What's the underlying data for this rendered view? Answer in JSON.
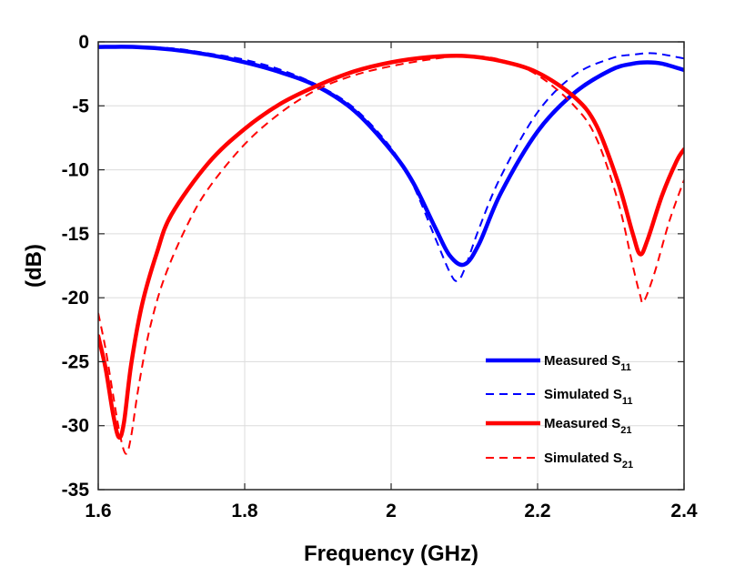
{
  "chart_data": {
    "type": "line",
    "title": "",
    "xlabel": "Frequency (GHz)",
    "ylabel": "(dB)",
    "xlim": [
      1.6,
      2.4
    ],
    "ylim": [
      -35,
      0
    ],
    "xticks": [
      1.6,
      1.8,
      2.0,
      2.2,
      2.4
    ],
    "xtick_labels": [
      "1.6",
      "1.8",
      "2",
      "2.2",
      "2.4"
    ],
    "yticks": [
      0,
      -5,
      -10,
      -15,
      -20,
      -25,
      -30,
      -35
    ],
    "ytick_labels": [
      "0",
      "-5",
      "-10",
      "-15",
      "-20",
      "-25",
      "-30",
      "-35"
    ],
    "grid": true,
    "legend_position": "bottom-right",
    "series": [
      {
        "name": "Measured S11",
        "label_main": "Measured S",
        "label_sub": "11",
        "color": "#0000ff",
        "style": "solid",
        "x": [
          1.6,
          1.65,
          1.7,
          1.75,
          1.8,
          1.85,
          1.9,
          1.95,
          2.0,
          2.03,
          2.06,
          2.08,
          2.1,
          2.12,
          2.15,
          2.2,
          2.25,
          2.3,
          2.33,
          2.35,
          2.37,
          2.4
        ],
        "y": [
          -0.4,
          -0.4,
          -0.6,
          -1.0,
          -1.6,
          -2.4,
          -3.5,
          -5.4,
          -8.5,
          -11.0,
          -14.5,
          -16.7,
          -17.4,
          -15.8,
          -11.8,
          -7.0,
          -4.0,
          -2.2,
          -1.7,
          -1.6,
          -1.7,
          -2.2
        ]
      },
      {
        "name": "Simulated S11",
        "label_main": "Simulated S",
        "label_sub": "11",
        "color": "#0000ff",
        "style": "dashed",
        "x": [
          1.6,
          1.65,
          1.7,
          1.75,
          1.8,
          1.85,
          1.9,
          1.95,
          2.0,
          2.03,
          2.06,
          2.08,
          2.09,
          2.1,
          2.12,
          2.15,
          2.2,
          2.25,
          2.3,
          2.33,
          2.36,
          2.4
        ],
        "y": [
          -0.4,
          -0.4,
          -0.5,
          -0.9,
          -1.4,
          -2.2,
          -3.4,
          -5.2,
          -8.3,
          -11.2,
          -15.3,
          -18.0,
          -18.7,
          -17.8,
          -14.6,
          -10.5,
          -5.5,
          -2.6,
          -1.3,
          -1.0,
          -0.9,
          -1.3
        ]
      },
      {
        "name": "Measured S21",
        "label_main": "Measured S",
        "label_sub": "21",
        "color": "#ff0000",
        "style": "solid",
        "x": [
          1.6,
          1.61,
          1.62,
          1.628,
          1.635,
          1.645,
          1.66,
          1.68,
          1.7,
          1.75,
          1.8,
          1.85,
          1.9,
          1.95,
          2.0,
          2.05,
          2.1,
          2.15,
          2.2,
          2.25,
          2.28,
          2.31,
          2.33,
          2.34,
          2.35,
          2.37,
          2.39,
          2.4
        ],
        "y": [
          -23.0,
          -25.5,
          -29.0,
          -30.9,
          -29.8,
          -25.2,
          -20.5,
          -16.5,
          -13.5,
          -9.5,
          -6.8,
          -4.8,
          -3.4,
          -2.3,
          -1.6,
          -1.2,
          -1.1,
          -1.5,
          -2.4,
          -4.3,
          -6.5,
          -11.0,
          -15.0,
          -16.6,
          -15.5,
          -12.0,
          -9.3,
          -8.4
        ]
      },
      {
        "name": "Simulated S21",
        "label_main": "Simulated S",
        "label_sub": "21",
        "color": "#ff0000",
        "style": "dashed",
        "x": [
          1.6,
          1.61,
          1.62,
          1.63,
          1.638,
          1.645,
          1.655,
          1.67,
          1.69,
          1.72,
          1.75,
          1.8,
          1.85,
          1.9,
          1.95,
          2.0,
          2.05,
          2.1,
          2.15,
          2.2,
          2.25,
          2.28,
          2.31,
          2.33,
          2.34,
          2.345,
          2.36,
          2.38,
          2.4
        ],
        "y": [
          -21.2,
          -24.0,
          -27.5,
          -30.8,
          -32.2,
          -30.8,
          -27.0,
          -22.5,
          -18.5,
          -14.5,
          -11.5,
          -8.0,
          -5.5,
          -3.7,
          -2.6,
          -1.9,
          -1.4,
          -1.1,
          -1.4,
          -2.6,
          -5.0,
          -7.5,
          -12.5,
          -17.5,
          -19.8,
          -20.3,
          -18.0,
          -14.0,
          -10.8
        ]
      }
    ]
  }
}
